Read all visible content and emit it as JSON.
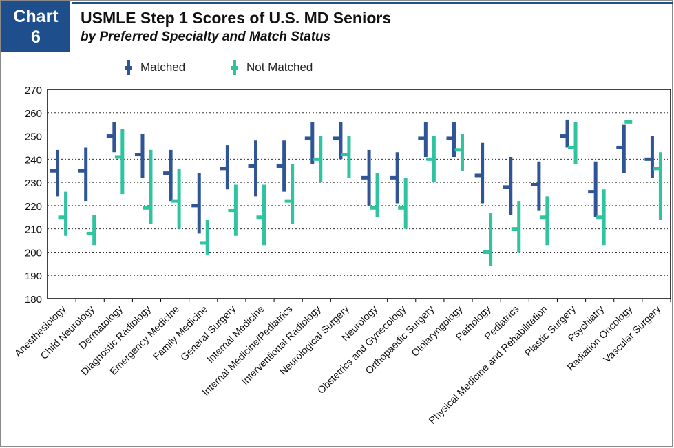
{
  "badge": {
    "line1": "Chart",
    "line2": "6"
  },
  "header": {
    "title": "USMLE Step 1 Scores of U.S. MD Seniors",
    "subtitle": "by Preferred Specialty and Match Status"
  },
  "colors": {
    "matched": "#2f5597",
    "not_matched": "#2ec4a0",
    "brand": "#1f4e8c"
  },
  "chart_data": {
    "type": "range",
    "ylim": [
      180,
      270
    ],
    "yticks": [
      180,
      190,
      200,
      210,
      220,
      230,
      240,
      250,
      260,
      270
    ],
    "grid": true,
    "legend_position": "top",
    "categories": [
      "Anesthesiology",
      "Child Neurology",
      "Dermatology",
      "Diagnostic Radiology",
      "Emergency Medicine",
      "Family Medicine",
      "General Surgery",
      "Internal Medicine",
      "Internal Medicine/Pediatrics",
      "Interventional Radiology",
      "Neurological Surgery",
      "Neurology",
      "Obstetrics and Gynecology",
      "Orthopaedic Surgery",
      "Otolaryngology",
      "Pathology",
      "Pediatrics",
      "Physical Medicine and Rehabilitation",
      "Plastic Surgery",
      "Psychiatry",
      "Radiation Oncology",
      "Vascular Surgery"
    ],
    "series": [
      {
        "name": "Matched",
        "low": [
          224,
          222,
          243,
          232,
          222,
          208,
          227,
          224,
          226,
          238,
          240,
          220,
          221,
          241,
          241,
          221,
          216,
          218,
          245,
          215,
          234,
          232
        ],
        "high": [
          244,
          245,
          256,
          251,
          244,
          234,
          246,
          248,
          248,
          256,
          256,
          244,
          243,
          256,
          256,
          247,
          241,
          239,
          257,
          239,
          255,
          250
        ],
        "mean": [
          235,
          235,
          250,
          242,
          234,
          220,
          236,
          237,
          237,
          249,
          249,
          232,
          232,
          249,
          249,
          233,
          228,
          229,
          250,
          226,
          245,
          240
        ]
      },
      {
        "name": "Not Matched",
        "low": [
          207,
          203,
          225,
          212,
          210,
          199,
          207,
          203,
          212,
          230,
          232,
          215,
          210,
          230,
          235,
          194,
          200,
          203,
          238,
          203,
          256,
          214
        ],
        "high": [
          226,
          216,
          253,
          244,
          236,
          214,
          229,
          229,
          238,
          250,
          250,
          234,
          232,
          250,
          251,
          217,
          222,
          224,
          256,
          227,
          256,
          243
        ],
        "mean": [
          215,
          208,
          241,
          219,
          222,
          204,
          218,
          215,
          222,
          240,
          242,
          219,
          219,
          240,
          244,
          200,
          210,
          215,
          245,
          215,
          256,
          236
        ]
      }
    ]
  }
}
